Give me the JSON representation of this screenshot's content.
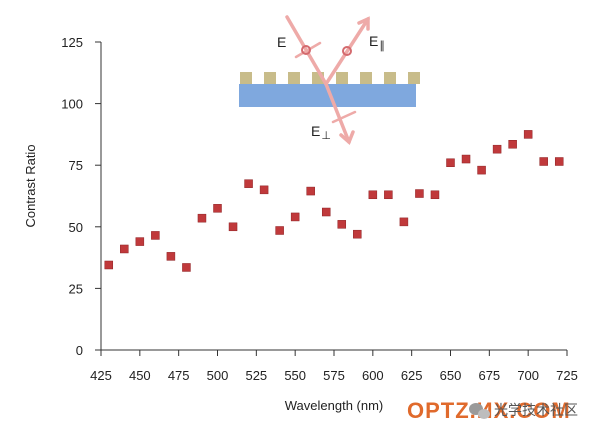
{
  "chart_data": {
    "type": "scatter",
    "title": "",
    "xlabel": "Wavelength (nm)",
    "ylabel": "Contrast Ratio",
    "xlim": [
      425,
      725
    ],
    "ylim": [
      0,
      125
    ],
    "xticks": [
      425,
      450,
      475,
      500,
      525,
      550,
      575,
      600,
      625,
      650,
      675,
      700,
      725
    ],
    "yticks": [
      0,
      25,
      50,
      75,
      100,
      125
    ],
    "grid": false,
    "marker_color": "#c0393b",
    "series": [
      {
        "points": [
          [
            430,
            34.5
          ],
          [
            440,
            41
          ],
          [
            450,
            44
          ],
          [
            460,
            46.5
          ],
          [
            470,
            38
          ],
          [
            480,
            33.5
          ],
          [
            490,
            53.5
          ],
          [
            500,
            57.5
          ],
          [
            510,
            50
          ],
          [
            520,
            67.5
          ],
          [
            530,
            65
          ],
          [
            540,
            48.5
          ],
          [
            550,
            54
          ],
          [
            560,
            64.5
          ],
          [
            570,
            56
          ],
          [
            580,
            51
          ],
          [
            590,
            47
          ],
          [
            600,
            63
          ],
          [
            610,
            63
          ],
          [
            620,
            52
          ],
          [
            630,
            63.5
          ],
          [
            640,
            63
          ],
          [
            650,
            76
          ],
          [
            660,
            77.5
          ],
          [
            670,
            73
          ],
          [
            680,
            81.5
          ],
          [
            690,
            83.5
          ],
          [
            700,
            87.5
          ],
          [
            710,
            76.5
          ],
          [
            720,
            76.5
          ]
        ]
      }
    ],
    "inset": {
      "labels": [
        "E",
        "E",
        "E"
      ],
      "subscripts": [
        "",
        "∥",
        "⊥"
      ],
      "grating_color": "#c8bc8a",
      "substrate_color": "#7fa8de",
      "beam_color": "#eeaaa8"
    }
  },
  "watermark": {
    "latin": "OPTZ.ИX.COM",
    "cjk": "光学技术社区",
    "latin_color": "#e06a2c"
  }
}
